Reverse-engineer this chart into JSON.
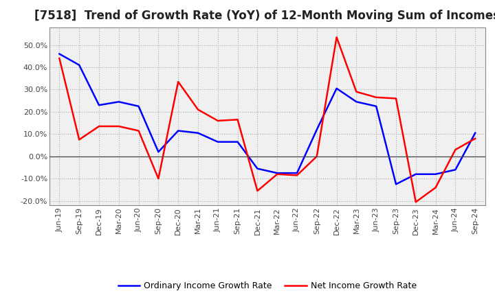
{
  "title": "[7518]  Trend of Growth Rate (YoY) of 12-Month Moving Sum of Incomes",
  "x_labels": [
    "Jun-19",
    "Sep-19",
    "Dec-19",
    "Mar-20",
    "Jun-20",
    "Sep-20",
    "Dec-20",
    "Mar-21",
    "Jun-21",
    "Sep-21",
    "Dec-21",
    "Mar-22",
    "Jun-22",
    "Sep-22",
    "Dec-22",
    "Mar-23",
    "Jun-23",
    "Sep-23",
    "Dec-23",
    "Mar-24",
    "Jun-24",
    "Sep-24"
  ],
  "ordinary_income": [
    0.46,
    0.41,
    0.23,
    0.245,
    0.225,
    0.02,
    0.115,
    0.105,
    0.065,
    0.065,
    -0.055,
    -0.075,
    -0.075,
    0.12,
    0.305,
    0.245,
    0.225,
    -0.125,
    -0.08,
    -0.08,
    -0.06,
    0.105
  ],
  "net_income": [
    0.44,
    0.075,
    0.135,
    0.135,
    0.115,
    -0.1,
    0.335,
    0.21,
    0.16,
    0.165,
    -0.155,
    -0.08,
    -0.085,
    0.0,
    0.535,
    0.29,
    0.265,
    0.26,
    -0.205,
    -0.14,
    0.03,
    0.08
  ],
  "ordinary_color": "#0000ff",
  "net_color": "#ff0000",
  "ylim": [
    -0.22,
    0.58
  ],
  "yticks": [
    -0.2,
    -0.1,
    0.0,
    0.1,
    0.2,
    0.3,
    0.4,
    0.5
  ],
  "plot_bg_color": "#f0f0f0",
  "fig_bg_color": "#ffffff",
  "grid_color": "#aaaaaa",
  "title_fontsize": 12,
  "tick_fontsize": 8,
  "legend_labels": [
    "Ordinary Income Growth Rate",
    "Net Income Growth Rate"
  ]
}
